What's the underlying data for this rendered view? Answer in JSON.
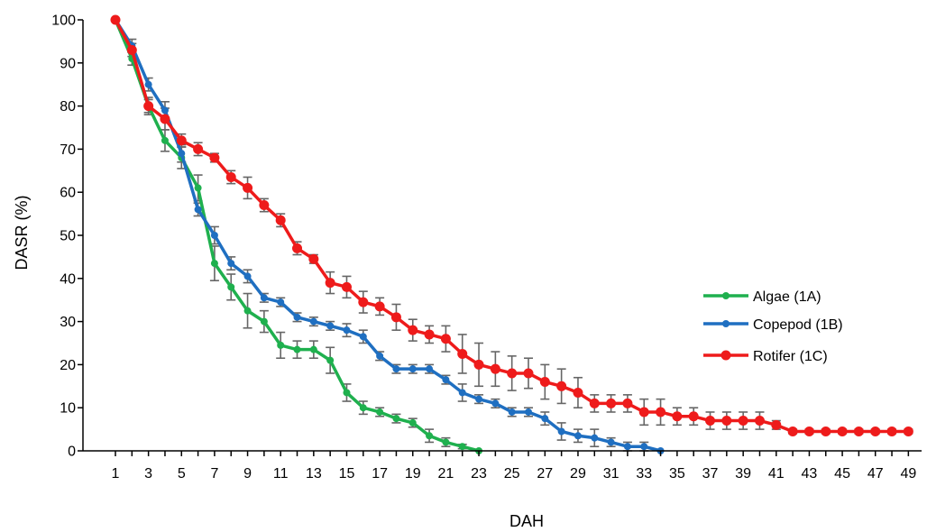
{
  "chart_data": {
    "type": "line",
    "title": "",
    "xlabel": "DAH",
    "ylabel": "DASR (%)",
    "xlim": [
      1,
      49
    ],
    "ylim": [
      0,
      100
    ],
    "x_ticks": [
      1,
      3,
      5,
      7,
      9,
      11,
      13,
      15,
      17,
      19,
      21,
      23,
      25,
      27,
      29,
      31,
      33,
      35,
      37,
      39,
      41,
      43,
      45,
      47,
      49
    ],
    "y_ticks": [
      0,
      10,
      20,
      30,
      40,
      50,
      60,
      70,
      80,
      90,
      100
    ],
    "grid": false,
    "legend": "right",
    "series": [
      {
        "name": "Algae (1A)",
        "color": "#1fb04e",
        "x": [
          1,
          2,
          3,
          4,
          5,
          6,
          7,
          8,
          9,
          10,
          11,
          12,
          13,
          14,
          15,
          16,
          17,
          18,
          19,
          20,
          21,
          22,
          23
        ],
        "y": [
          100,
          91,
          80,
          72,
          68,
          61,
          43.5,
          38,
          32.5,
          30,
          24.5,
          23.5,
          23.5,
          21,
          13.5,
          10,
          9,
          7.5,
          6.5,
          3.5,
          2,
          1,
          0
        ],
        "err": [
          0,
          1.5,
          1.5,
          2.5,
          2.5,
          3,
          4,
          3,
          4,
          2.5,
          3,
          2,
          2,
          3,
          2,
          1.5,
          1,
          1,
          1,
          1.5,
          1,
          0.5,
          0
        ]
      },
      {
        "name": "Copepod (1B)",
        "color": "#1f6fc1",
        "x": [
          1,
          2,
          3,
          4,
          5,
          6,
          7,
          8,
          9,
          10,
          11,
          12,
          13,
          14,
          15,
          16,
          17,
          18,
          19,
          20,
          21,
          22,
          23,
          24,
          25,
          26,
          27,
          28,
          29,
          30,
          31,
          32,
          33,
          34
        ],
        "y": [
          100,
          94,
          85,
          79,
          69,
          56,
          50,
          43.5,
          40.5,
          35.5,
          34.5,
          31,
          30,
          29,
          28,
          26.5,
          22,
          19,
          19,
          19,
          16.5,
          13.5,
          12,
          11,
          9,
          9,
          7.5,
          4.5,
          3.5,
          3,
          2,
          1,
          1,
          0
        ],
        "err": [
          0,
          1.5,
          1.5,
          2,
          2,
          1.5,
          2,
          1.5,
          1.5,
          1,
          1,
          1,
          1,
          1,
          1.5,
          1.5,
          1,
          1,
          1,
          1,
          1,
          2,
          1,
          1,
          1,
          1,
          1.5,
          2,
          1.5,
          2,
          1,
          1,
          1,
          0
        ]
      },
      {
        "name": "Rotifer (1C)",
        "color": "#ee1b1b",
        "x": [
          1,
          2,
          3,
          4,
          5,
          6,
          7,
          8,
          9,
          10,
          11,
          12,
          13,
          14,
          15,
          16,
          17,
          18,
          19,
          20,
          21,
          22,
          23,
          24,
          25,
          26,
          27,
          28,
          29,
          30,
          31,
          32,
          33,
          34,
          35,
          36,
          37,
          38,
          39,
          40,
          41,
          42,
          43,
          44,
          45,
          46,
          47,
          48,
          49
        ],
        "y": [
          100,
          93,
          80,
          77,
          72,
          70,
          68,
          63.5,
          61,
          57,
          53.5,
          47,
          44.5,
          39,
          38,
          34.5,
          33.5,
          31,
          28,
          27,
          26,
          22.5,
          20,
          19,
          18,
          18,
          16,
          15,
          13.5,
          11,
          11,
          11,
          9,
          9,
          8,
          8,
          7,
          7,
          7,
          7,
          6,
          4.5,
          4.5,
          4.5,
          4.5,
          4.5,
          4.5,
          4.5,
          4.5
        ],
        "err": [
          0,
          1.5,
          2,
          2.5,
          1.5,
          1.5,
          1,
          1.5,
          2.5,
          1.5,
          1.5,
          1.5,
          1,
          2.5,
          2.5,
          2.5,
          2,
          3,
          2.5,
          2,
          3,
          4.5,
          5,
          4,
          4,
          3.5,
          4,
          4,
          3.5,
          2,
          2,
          2,
          3,
          3,
          2,
          2,
          2,
          2,
          2,
          2,
          1,
          0.5,
          0.5,
          0.5,
          0.5,
          0.5,
          0.5,
          0.5,
          0.5
        ]
      }
    ]
  }
}
